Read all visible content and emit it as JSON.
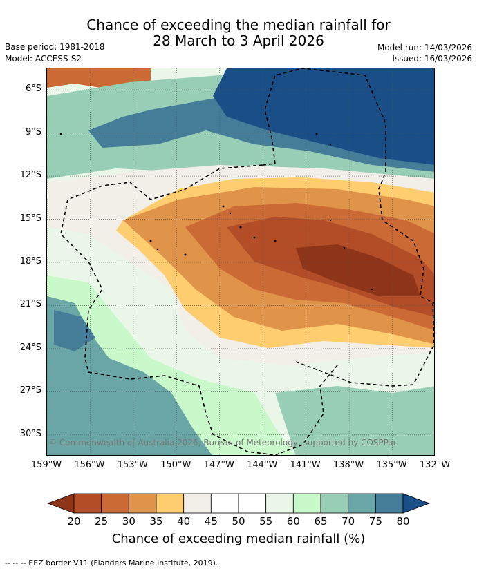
{
  "header": {
    "title_line1": "Chance of exceeding the median rainfall for",
    "title_line2": "28 March to 3 April 2026",
    "base_period": "Base period: 1981-2018",
    "model": "Model: ACCESS-S2",
    "model_run": "Model run: 14/03/2026",
    "issued": "Issued: 16/03/2026"
  },
  "map": {
    "lon_labels": [
      "159°W",
      "156°W",
      "153°W",
      "150°W",
      "147°W",
      "144°W",
      "141°W",
      "138°W",
      "135°W",
      "132°W"
    ],
    "lon_values": [
      -159,
      -156,
      -153,
      -150,
      -147,
      -144,
      -141,
      -138,
      -135,
      -132
    ],
    "lat_labels": [
      "6°S",
      "9°S",
      "12°S",
      "15°S",
      "18°S",
      "21°S",
      "24°S",
      "27°S",
      "30°S"
    ],
    "lat_values": [
      -6,
      -9,
      -12,
      -15,
      -18,
      -21,
      -24,
      -27,
      -30
    ],
    "lon_range": [
      -159,
      -132
    ],
    "lat_range": [
      -4.5,
      -31.5
    ],
    "copyright": "© Commonwealth of Australia 2026, Bureau of Meteorology, supported by COSPPac"
  },
  "colorbar": {
    "ticks": [
      "20",
      "25",
      "30",
      "35",
      "40",
      "45",
      "50",
      "55",
      "60",
      "65",
      "70",
      "75",
      "80"
    ],
    "colors": [
      "#8e3519",
      "#b34d28",
      "#cc6a35",
      "#e0944a",
      "#fdcd6f",
      "#f2efe8",
      "#ffffff",
      "#ffffff",
      "#eaf6e8",
      "#c9f8cb",
      "#99ceb6",
      "#6aa6a6",
      "#457d99",
      "#194f86"
    ],
    "label": "Chance of exceeding median rainfall (%)"
  },
  "footnote": "--  --  -- EEZ border V11 (Flanders Marine Institute, 2019)."
}
